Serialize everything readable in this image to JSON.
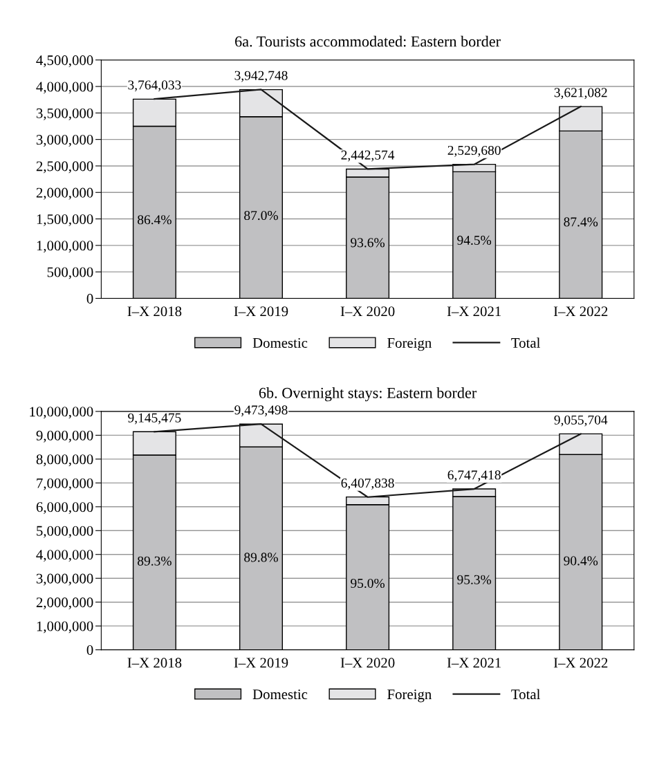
{
  "chart_data": [
    {
      "type": "bar",
      "title": "6a. Tourists accommodated: Eastern border",
      "categories": [
        "I–X 2018",
        "I–X 2019",
        "I–X 2020",
        "I–X 2021",
        "I–X 2022"
      ],
      "stacked": true,
      "grid": "y",
      "legend": "bottom",
      "ylim": [
        0,
        4500000
      ],
      "yticks": [
        0,
        {
          "value": 500000,
          "label": "500,000"
        },
        {
          "value": 1000000,
          "label": "1,000,000"
        },
        {
          "value": 1500000,
          "label": "1,500,000"
        },
        {
          "value": 2000000,
          "label": "2,000,000"
        },
        {
          "value": 2500000,
          "label": "2,500,000"
        },
        {
          "value": 3000000,
          "label": "3,000,000"
        },
        {
          "value": 3500000,
          "label": "3,500,000"
        },
        {
          "value": 4000000,
          "label": "4,000,000"
        },
        {
          "value": 4500000,
          "label": "4,500,000"
        }
      ],
      "annotations": [
        "86.4%",
        "87.0%",
        "93.6%",
        "94.5%",
        "87.4%"
      ],
      "series": [
        {
          "name": "Domestic",
          "color": "#c0c0c2",
          "values": [
            3250000,
            3430000,
            2290000,
            2390000,
            3160000
          ]
        },
        {
          "name": "Foreign",
          "color": "#e4e4e6",
          "values": [
            510000,
            510000,
            150000,
            140000,
            460000
          ]
        },
        {
          "name": "Total",
          "type": "line",
          "color": "#1a1a1a",
          "marker": "none",
          "line_style": "solid",
          "values": [
            3764033,
            3942748,
            2442574,
            2529680,
            3621082
          ],
          "value_labels": [
            "3,764,033",
            "3,942,748",
            "2,442,574",
            "2,529,680",
            "3,621,082"
          ]
        }
      ]
    },
    {
      "type": "bar",
      "title": "6b. Overnight stays: Eastern border",
      "categories": [
        "I–X 2018",
        "I–X 2019",
        "I–X 2020",
        "I–X 2021",
        "I–X 2022"
      ],
      "stacked": true,
      "grid": "y",
      "legend": "bottom",
      "ylim": [
        0,
        10000000
      ],
      "yticks": [
        0,
        {
          "value": 1000000,
          "label": "1,000,000"
        },
        {
          "value": 2000000,
          "label": "2,000,000"
        },
        {
          "value": 3000000,
          "label": "3,000,000"
        },
        {
          "value": 4000000,
          "label": "4,000,000"
        },
        {
          "value": 5000000,
          "label": "5,000,000"
        },
        {
          "value": 6000000,
          "label": "6,000,000"
        },
        {
          "value": 7000000,
          "label": "7,000,000"
        },
        {
          "value": 8000000,
          "label": "8,000,000"
        },
        {
          "value": 9000000,
          "label": "9,000,000"
        },
        {
          "value": 10000000,
          "label": "10,000,000"
        }
      ],
      "annotations": [
        "89.3%",
        "89.8%",
        "95.0%",
        "95.3%",
        "90.4%"
      ],
      "series": [
        {
          "name": "Domestic",
          "color": "#c0c0c2",
          "values": [
            8170000,
            8510000,
            6090000,
            6430000,
            8190000
          ]
        },
        {
          "name": "Foreign",
          "color": "#e4e4e6",
          "values": [
            980000,
            960000,
            320000,
            320000,
            870000
          ]
        },
        {
          "name": "Total",
          "type": "line",
          "color": "#1a1a1a",
          "marker": "none",
          "line_style": "solid",
          "values": [
            9145475,
            9473498,
            6407838,
            6747418,
            9055704
          ],
          "value_labels": [
            "9,145,475",
            "9,473,498",
            "6,407,838",
            "6,747,418",
            "9,055,704"
          ]
        }
      ]
    }
  ]
}
